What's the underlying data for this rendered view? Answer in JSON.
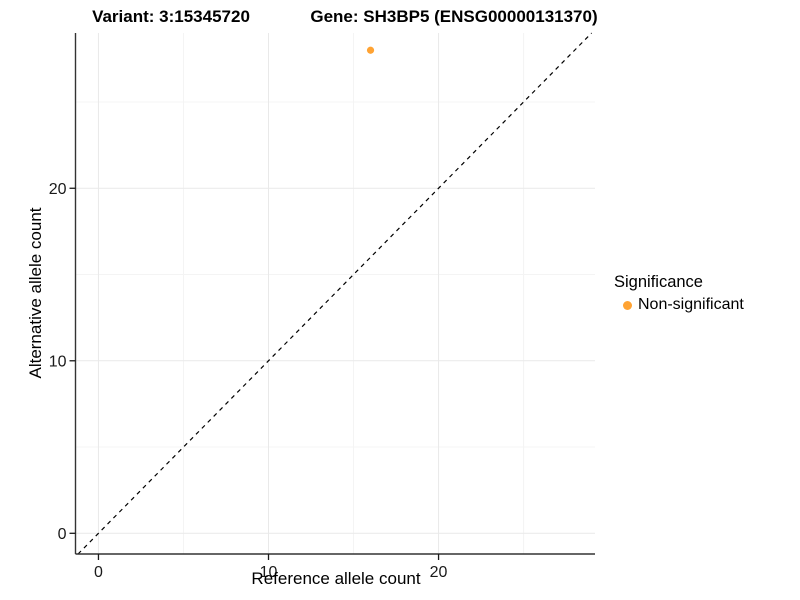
{
  "chart_data": {
    "type": "scatter",
    "title_left": "Variant: 3:15345720",
    "title_right": "Gene: SH3BP5 (ENSG00000131370)",
    "xlabel": "Reference allele count",
    "ylabel": "Alternative allele count",
    "xlim": [
      -1.35,
      29.2
    ],
    "ylim": [
      -1.2,
      29.0
    ],
    "x_ticks": [
      0,
      10,
      20
    ],
    "y_ticks": [
      0,
      10,
      20
    ],
    "grid_major": [
      0,
      10,
      20
    ],
    "grid_minor": [
      5,
      15,
      25
    ],
    "grid_on": true,
    "identity_line": {
      "equation": "y = x",
      "style": "dashed",
      "color": "#000000"
    },
    "series": [
      {
        "name": "Non-significant",
        "color": "#FFA333",
        "points": [
          {
            "x": 16,
            "y": 28
          }
        ]
      }
    ],
    "legend": {
      "title": "Significance",
      "position": "right",
      "entries": [
        {
          "label": "Non-significant",
          "color": "#FFA333"
        }
      ]
    }
  },
  "colors": {
    "background": "#FFFFFF",
    "axis_line": "#333333",
    "tick_mark": "#1a1a1a",
    "tick_text": "#1a1a1a",
    "grid_major": "#E9E9E9",
    "grid_minor": "#F4F4F4",
    "point": "#FFA333"
  }
}
